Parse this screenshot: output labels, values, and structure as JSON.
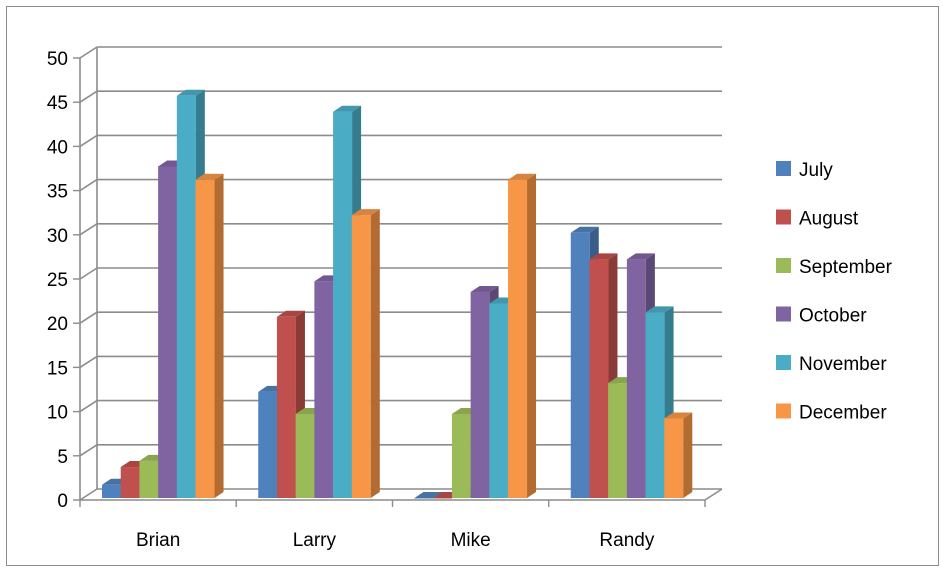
{
  "chart_data": {
    "type": "bar",
    "style": "3d-clustered-column",
    "categories": [
      "Brian",
      "Larry",
      "Mike",
      "Randy"
    ],
    "series": [
      {
        "name": "July",
        "color": "#4f81bd",
        "values": [
          1.5,
          12,
          0,
          30
        ]
      },
      {
        "name": "August",
        "color": "#c0504d",
        "values": [
          3.5,
          20.5,
          0,
          27
        ]
      },
      {
        "name": "September",
        "color": "#9bbb59",
        "values": [
          4.2,
          9.5,
          9.5,
          13
        ]
      },
      {
        "name": "October",
        "color": "#8064a2",
        "values": [
          37.5,
          24.5,
          23.3,
          27
        ]
      },
      {
        "name": "November",
        "color": "#4bacc6",
        "values": [
          45.5,
          43.7,
          22,
          21
        ]
      },
      {
        "name": "December",
        "color": "#f79646",
        "values": [
          36,
          32,
          36,
          9
        ]
      }
    ],
    "yticks": [
      "0",
      "5",
      "10",
      "15",
      "20",
      "25",
      "30",
      "35",
      "40",
      "45",
      "50"
    ],
    "ylim": [
      0,
      50
    ],
    "grid": true,
    "legend_position": "right"
  }
}
